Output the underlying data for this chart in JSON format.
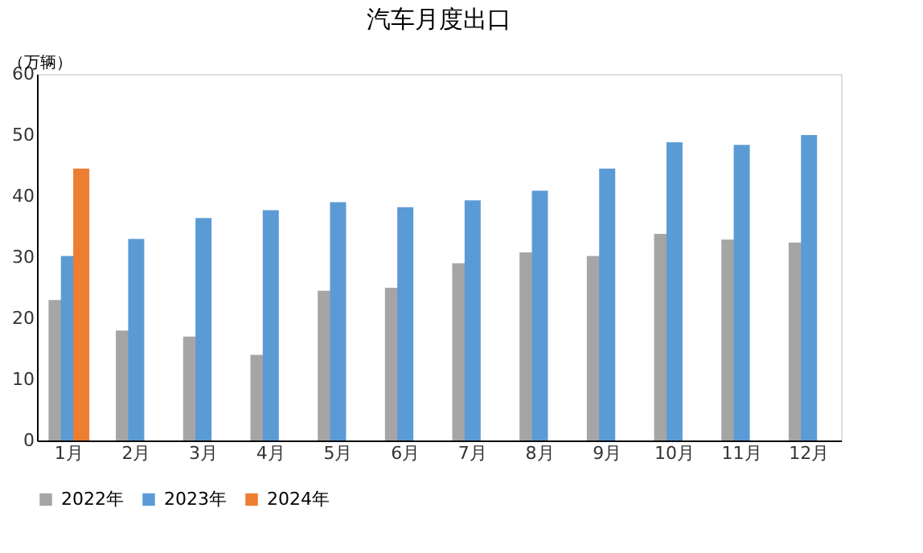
{
  "chart_data": {
    "type": "bar",
    "title": "汽车月度出口",
    "ylabel": "（万辆）",
    "categories": [
      "1月",
      "2月",
      "3月",
      "4月",
      "5月",
      "6月",
      "7月",
      "8月",
      "9月",
      "10月",
      "11月",
      "12月"
    ],
    "series": [
      {
        "name": "2022年",
        "color": "#a5a5a5",
        "values": [
          23,
          18,
          17,
          14,
          24.5,
          25,
          29,
          30.8,
          30.2,
          33.8,
          32.9,
          32.4
        ]
      },
      {
        "name": "2023年",
        "color": "#5b9bd5",
        "values": [
          30.2,
          33,
          36.4,
          37.7,
          39,
          38.2,
          39.3,
          40.9,
          44.5,
          48.8,
          48.4,
          50
        ]
      },
      {
        "name": "2024年",
        "color": "#ed7d31",
        "values": [
          44.5,
          null,
          null,
          null,
          null,
          null,
          null,
          null,
          null,
          null,
          null,
          null
        ]
      }
    ],
    "ylim": [
      0,
      60
    ],
    "yticks": [
      0,
      10,
      20,
      30,
      40,
      50,
      60
    ],
    "grid": false,
    "legend": "bottom"
  }
}
